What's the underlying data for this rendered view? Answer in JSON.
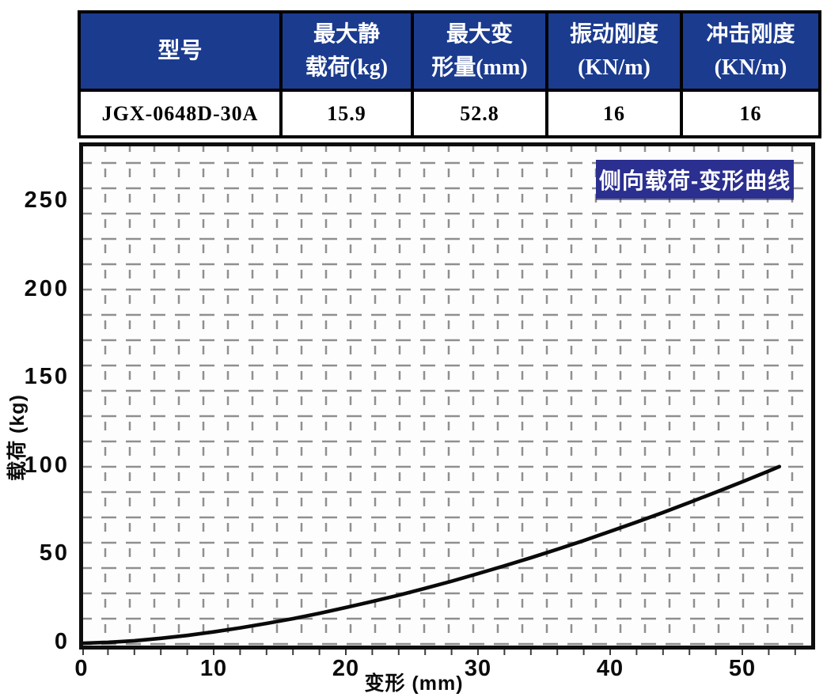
{
  "spec_table": {
    "header_bg": "#1B3B8F",
    "header_text_color": "#ffffff",
    "columns": [
      {
        "header_line1": "型号",
        "header_line2": "",
        "value": "JGX-0648D-30A"
      },
      {
        "header_line1": "最大静",
        "header_line2": "载荷(kg)",
        "value": "15.9"
      },
      {
        "header_line1": "最大变",
        "header_line2": "形量(mm)",
        "value": "52.8"
      },
      {
        "header_line1": "振动刚度",
        "header_line2": "(KN/m)",
        "value": "16"
      },
      {
        "header_line1": "冲击刚度",
        "header_line2": "(KN/m)",
        "value": "16"
      }
    ]
  },
  "chart_data": {
    "type": "line",
    "title": "侧向载荷-变形曲线",
    "xlabel": "变形 (mm)",
    "ylabel": "载荷 (kg)",
    "xlim": [
      0,
      56
    ],
    "ylim": [
      0,
      281
    ],
    "x_ticks": [
      0,
      10,
      20,
      30,
      40,
      50
    ],
    "y_ticks": [
      0,
      50,
      100,
      150,
      200,
      250
    ],
    "grid": "dashed-gray",
    "legend_position": "none",
    "title_badge_bg": "#2B2F90",
    "curve_color": "#0a0a0a",
    "series": [
      {
        "name": "侧向载荷-变形曲线",
        "x": [
          0,
          2,
          4,
          6,
          8,
          10,
          12,
          14,
          16,
          18,
          20,
          22,
          24,
          26,
          28,
          30,
          32,
          34,
          36,
          38,
          40,
          42,
          44,
          46,
          48,
          50,
          52,
          52.8
        ],
        "y": [
          0,
          0.5,
          1.4,
          2.8,
          4.4,
          6.4,
          8.7,
          11.2,
          13.9,
          16.9,
          20.2,
          23.6,
          27.2,
          31.1,
          35.1,
          39.4,
          43.8,
          48.4,
          53.2,
          58.1,
          63.3,
          68.6,
          74.0,
          79.7,
          85.5,
          91.4,
          97.5,
          100
        ]
      }
    ]
  }
}
